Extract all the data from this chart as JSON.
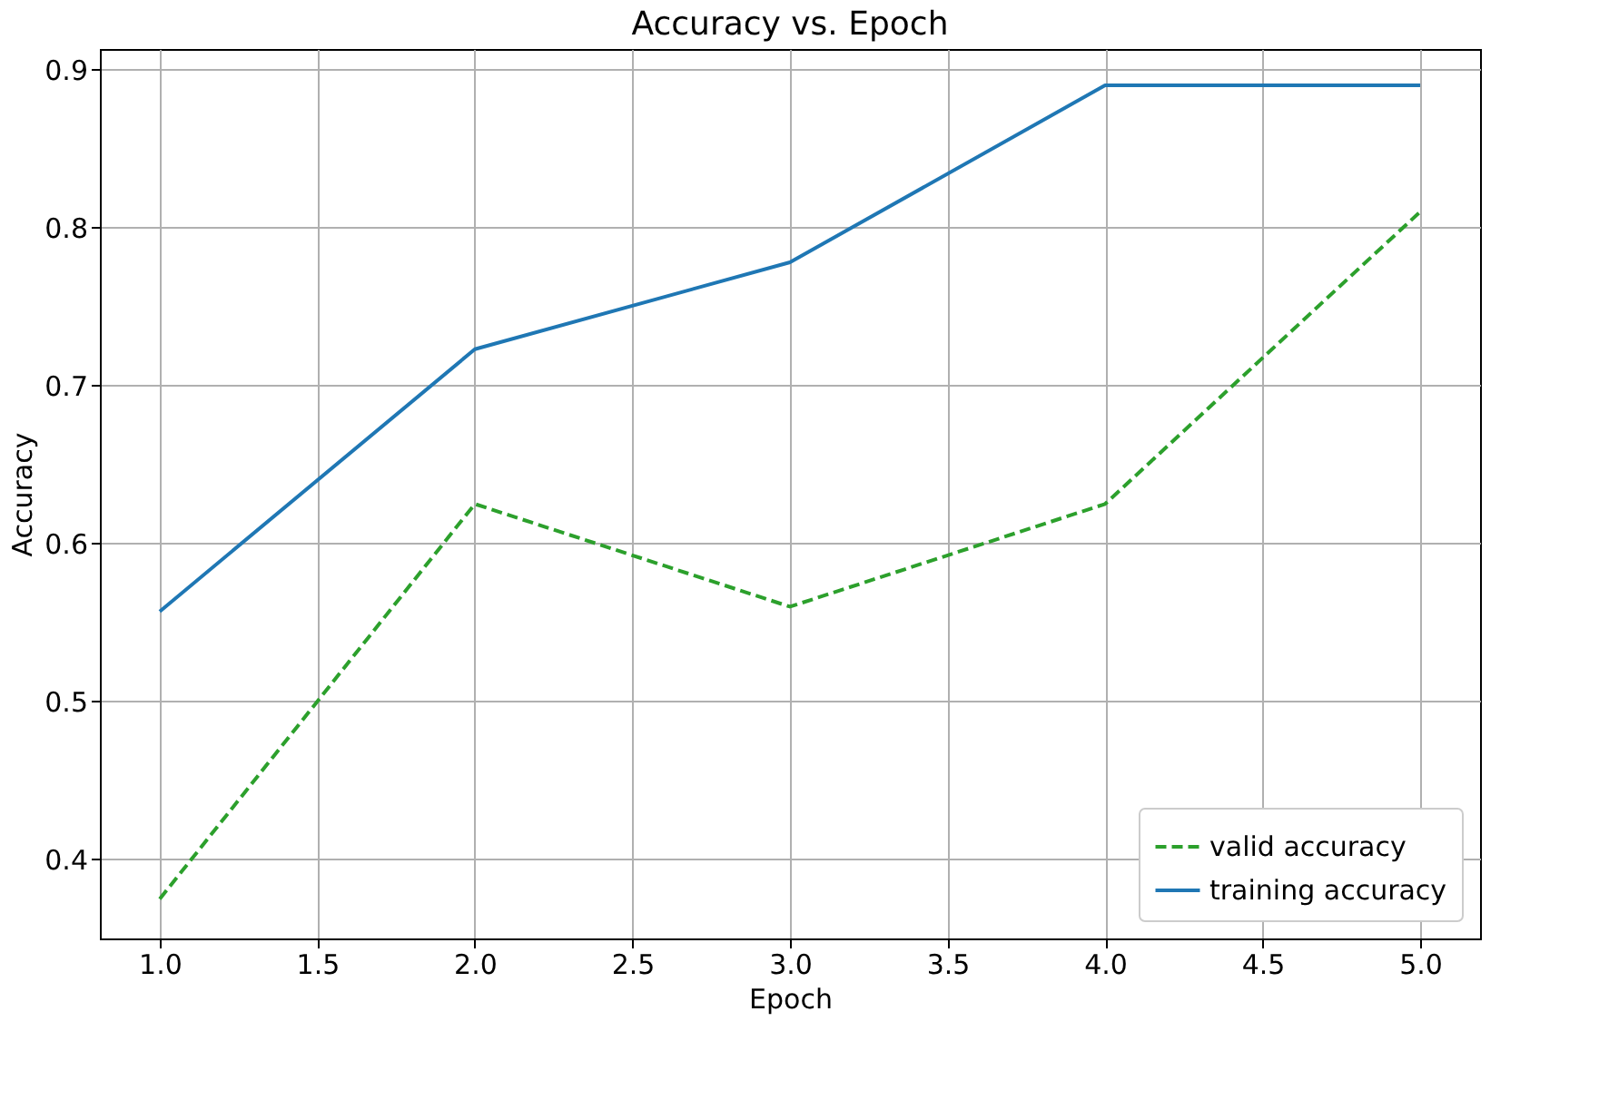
{
  "chart_data": {
    "type": "line",
    "title": "Accuracy vs. Epoch",
    "xlabel": "Epoch",
    "ylabel": "Accuracy",
    "x": [
      1,
      2,
      3,
      4,
      5
    ],
    "series": [
      {
        "name": "valid accuracy",
        "color": "#2ca02c",
        "line_style": "dashed",
        "values": [
          0.375,
          0.625,
          0.56,
          0.625,
          0.81
        ]
      },
      {
        "name": "training accuracy",
        "color": "#1f77b4",
        "line_style": "solid",
        "values": [
          0.557,
          0.723,
          0.778,
          0.89,
          0.89
        ]
      }
    ],
    "xlim": [
      0.81,
      5.19
    ],
    "ylim": [
      0.35,
      0.913
    ],
    "xticks": [
      {
        "value": 1,
        "label": "1.0"
      },
      1.5,
      {
        "value": 2,
        "label": "2.0"
      },
      2.5,
      {
        "value": 3,
        "label": "3.0"
      },
      3.5,
      {
        "value": 4,
        "label": "4.0"
      },
      4.5,
      {
        "value": 5,
        "label": "5.0"
      }
    ],
    "yticks": [
      0.4,
      0.5,
      0.6,
      0.7,
      0.8,
      0.9
    ],
    "grid": true,
    "legend": "bottom right",
    "marker": "none"
  }
}
